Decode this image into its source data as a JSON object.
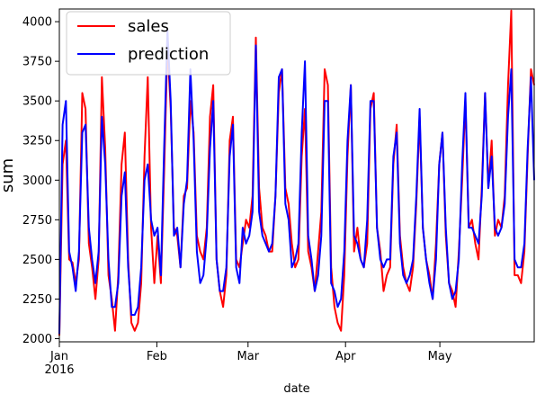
{
  "chart_data": {
    "type": "line",
    "xlabel": "date",
    "ylabel": "sum",
    "ylim": [
      1980,
      4080
    ],
    "yticks": [
      2000,
      2250,
      2500,
      2750,
      3000,
      3250,
      3500,
      3750,
      4000
    ],
    "ytick_labels": [
      "2000",
      "2250",
      "2500",
      "2750",
      "3000",
      "3250",
      "3500",
      "3750",
      "4000"
    ],
    "x_start": "2016-01-01",
    "x_end": "2016-05-31",
    "xticks": [
      {
        "date": "2016-01-01",
        "label": "Jan",
        "sublabel": "2016"
      },
      {
        "date": "2016-02-01",
        "label": "Feb",
        "sublabel": ""
      },
      {
        "date": "2016-03-01",
        "label": "Mar",
        "sublabel": ""
      },
      {
        "date": "2016-04-01",
        "label": "Apr",
        "sublabel": ""
      },
      {
        "date": "2016-05-01",
        "label": "May",
        "sublabel": ""
      }
    ],
    "legend": {
      "placement": "top-left"
    },
    "grid": false,
    "series": [
      {
        "name": "sales",
        "color": "#ff0000",
        "values": [
          2020,
          3100,
          3250,
          2500,
          2480,
          2350,
          2500,
          3550,
          3450,
          2600,
          2450,
          2250,
          2500,
          3650,
          3200,
          2400,
          2250,
          2050,
          2400,
          3100,
          3300,
          2500,
          2100,
          2050,
          2100,
          2350,
          3150,
          3650,
          2700,
          2350,
          2650,
          2350,
          3050,
          3850,
          3450,
          2700,
          2650,
          2450,
          2900,
          2950,
          3500,
          3300,
          2650,
          2550,
          2500,
          2700,
          3400,
          3600,
          2500,
          2300,
          2200,
          2400,
          3250,
          3400,
          2500,
          2450,
          2600,
          2750,
          2700,
          2900,
          3900,
          2950,
          2700,
          2650,
          2550,
          2550,
          2900,
          3550,
          3700,
          2950,
          2850,
          2600,
          2450,
          2500,
          3150,
          3450,
          2550,
          2450,
          2300,
          2550,
          2800,
          3700,
          3600,
          2450,
          2200,
          2100,
          2050,
          2400,
          3150,
          3600,
          2550,
          2700,
          2500,
          2450,
          2600,
          3450,
          3550,
          2700,
          2550,
          2300,
          2400,
          2450,
          3100,
          3350,
          2650,
          2450,
          2350,
          2300,
          2450,
          2850,
          3400,
          2700,
          2500,
          2400,
          2250,
          2600,
          3100,
          3300,
          2650,
          2350,
          2300,
          2200,
          2550,
          3000,
          3500,
          2700,
          2750,
          2600,
          2500,
          2950,
          3550,
          2950,
          3250,
          2650,
          2750,
          2700,
          2900,
          3600,
          4070,
          2400,
          2400,
          2350,
          2550,
          3150,
          3700,
          3600
        ]
      },
      {
        "name": "prediction",
        "color": "#0000ff",
        "values": [
          2030,
          3350,
          3500,
          2550,
          2450,
          2300,
          2550,
          3300,
          3350,
          2700,
          2500,
          2350,
          2550,
          3400,
          3100,
          2500,
          2200,
          2200,
          2350,
          2900,
          3050,
          2450,
          2150,
          2150,
          2200,
          2450,
          3000,
          3100,
          2750,
          2650,
          2700,
          2400,
          3200,
          3950,
          3500,
          2650,
          2700,
          2450,
          2850,
          3000,
          3700,
          3250,
          2550,
          2350,
          2400,
          2650,
          3200,
          3500,
          2500,
          2300,
          2300,
          2450,
          3150,
          3350,
          2450,
          2350,
          2700,
          2600,
          2650,
          2800,
          3850,
          2800,
          2650,
          2600,
          2550,
          2600,
          2900,
          3650,
          3700,
          2850,
          2750,
          2450,
          2500,
          2600,
          3300,
          3750,
          2650,
          2500,
          2300,
          2400,
          2650,
          3500,
          3500,
          2350,
          2300,
          2200,
          2250,
          2550,
          3250,
          3600,
          2650,
          2600,
          2500,
          2450,
          2750,
          3500,
          3500,
          2700,
          2500,
          2450,
          2500,
          2500,
          3150,
          3300,
          2600,
          2400,
          2350,
          2400,
          2500,
          2900,
          3450,
          2700,
          2500,
          2350,
          2250,
          2500,
          3100,
          3300,
          2700,
          2350,
          2250,
          2300,
          2500,
          3100,
          3550,
          2700,
          2700,
          2650,
          2600,
          2900,
          3550,
          2950,
          3150,
          2700,
          2650,
          2700,
          2850,
          3400,
          3700,
          2500,
          2450,
          2450,
          2600,
          3200,
          3650,
          3000
        ]
      }
    ]
  }
}
